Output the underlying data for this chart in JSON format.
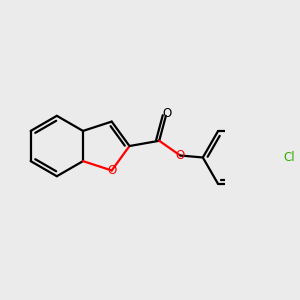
{
  "background_color": "#ebebeb",
  "bond_color": "#000000",
  "oxygen_color": "#ff0000",
  "chlorine_color": "#33aa00",
  "line_width": 1.6,
  "figsize": [
    3.0,
    3.0
  ],
  "dpi": 100,
  "xlim": [
    -1.3,
    1.5
  ],
  "ylim": [
    -1.1,
    1.1
  ]
}
